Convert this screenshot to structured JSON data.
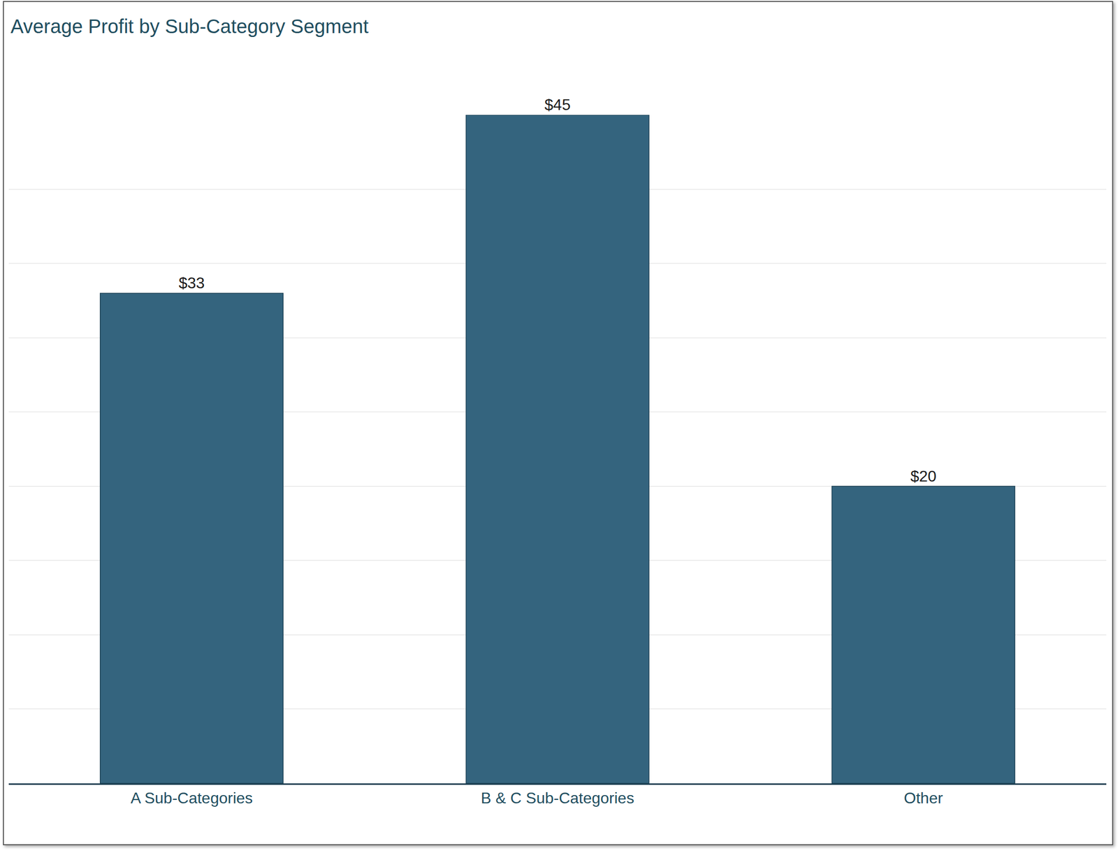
{
  "chart_data": {
    "type": "bar",
    "title": "Average Profit by Sub-Category Segment",
    "categories": [
      "A Sub-Categories",
      "B & C Sub-Categories",
      "Other"
    ],
    "values": [
      33,
      45,
      20
    ],
    "value_labels": [
      "$33",
      "$45",
      "$20"
    ],
    "data_labels": true,
    "color": "#34647e",
    "ylim": [
      0,
      45
    ],
    "yticks": [
      0,
      5,
      10,
      15,
      20,
      25,
      30,
      35,
      40,
      45
    ],
    "grid": true,
    "tick_labels": "x"
  }
}
